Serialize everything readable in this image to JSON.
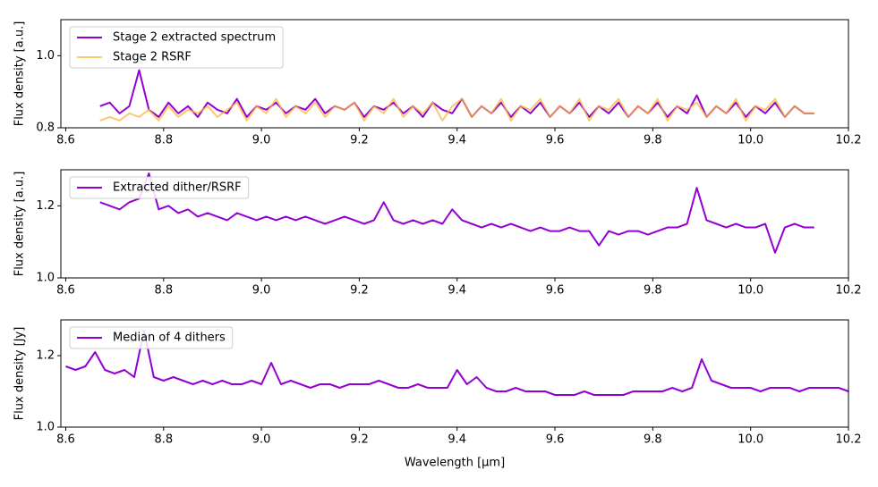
{
  "chart_data": [
    {
      "type": "line",
      "ylabel": "Flux density [a.u.]",
      "xlim": [
        8.59,
        10.2
      ],
      "ylim": [
        0.8,
        1.1
      ],
      "xticks": [
        8.6,
        8.8,
        {
          "value": 9,
          "label": "9.0"
        },
        9.2,
        9.4,
        9.6,
        9.8,
        {
          "value": 10,
          "label": "10.0"
        },
        10.2
      ],
      "yticks": [
        0.8,
        {
          "value": 1,
          "label": "1.0"
        }
      ],
      "legend": "upper left",
      "x": [
        8.67,
        8.69,
        8.71,
        8.73,
        8.75,
        8.77,
        8.79,
        8.81,
        8.83,
        8.85,
        8.87,
        8.89,
        8.91,
        8.93,
        8.95,
        8.97,
        8.99,
        9.01,
        9.03,
        9.05,
        9.07,
        9.09,
        9.11,
        9.13,
        9.15,
        9.17,
        9.19,
        9.21,
        9.23,
        9.25,
        9.27,
        9.29,
        9.31,
        9.33,
        9.35,
        9.37,
        9.39,
        9.41,
        9.43,
        9.45,
        9.47,
        9.49,
        9.51,
        9.53,
        9.55,
        9.57,
        9.59,
        9.61,
        9.63,
        9.65,
        9.67,
        9.69,
        9.71,
        9.73,
        9.75,
        9.77,
        9.79,
        9.81,
        9.83,
        9.85,
        9.87,
        9.89,
        9.91,
        9.93,
        9.95,
        9.97,
        9.99,
        10.01,
        10.03,
        10.05,
        10.07,
        10.09,
        10.11,
        10.13
      ],
      "series": [
        {
          "name": "Stage 2 extracted spectrum",
          "color": "#9400d3",
          "values": [
            0.86,
            0.87,
            0.84,
            0.86,
            0.96,
            0.85,
            0.83,
            0.87,
            0.84,
            0.86,
            0.83,
            0.87,
            0.85,
            0.84,
            0.88,
            0.83,
            0.86,
            0.85,
            0.87,
            0.84,
            0.86,
            0.85,
            0.88,
            0.84,
            0.86,
            0.85,
            0.87,
            0.83,
            0.86,
            0.85,
            0.87,
            0.84,
            0.86,
            0.83,
            0.87,
            0.85,
            0.84,
            0.88,
            0.83,
            0.86,
            0.84,
            0.87,
            0.83,
            0.86,
            0.84,
            0.87,
            0.83,
            0.86,
            0.84,
            0.87,
            0.83,
            0.86,
            0.84,
            0.87,
            0.83,
            0.86,
            0.84,
            0.87,
            0.83,
            0.86,
            0.84,
            0.89,
            0.83,
            0.86,
            0.84,
            0.87,
            0.83,
            0.86,
            0.84,
            0.87,
            0.83,
            0.86,
            0.84,
            0.84
          ]
        },
        {
          "name": "Stage 2 RSRF",
          "color": "#f9b73a",
          "values": [
            0.82,
            0.83,
            0.82,
            0.84,
            0.83,
            0.85,
            0.82,
            0.86,
            0.83,
            0.85,
            0.84,
            0.86,
            0.83,
            0.85,
            0.87,
            0.82,
            0.86,
            0.84,
            0.88,
            0.83,
            0.86,
            0.84,
            0.87,
            0.83,
            0.86,
            0.85,
            0.87,
            0.82,
            0.86,
            0.84,
            0.88,
            0.83,
            0.86,
            0.84,
            0.87,
            0.82,
            0.86,
            0.88,
            0.83,
            0.86,
            0.84,
            0.88,
            0.82,
            0.86,
            0.85,
            0.88,
            0.83,
            0.86,
            0.84,
            0.88,
            0.82,
            0.86,
            0.85,
            0.88,
            0.83,
            0.86,
            0.84,
            0.88,
            0.82,
            0.86,
            0.85,
            0.87,
            0.83,
            0.86,
            0.84,
            0.88,
            0.82,
            0.86,
            0.85,
            0.88,
            0.83,
            0.86,
            0.84,
            0.84
          ]
        }
      ]
    },
    {
      "type": "line",
      "ylabel": "Flux density [a.u.]",
      "xlim": [
        8.59,
        10.2
      ],
      "ylim": [
        1.0,
        1.3
      ],
      "xticks": [
        8.6,
        8.8,
        {
          "value": 9,
          "label": "9.0"
        },
        9.2,
        9.4,
        9.6,
        9.8,
        {
          "value": 10,
          "label": "10.0"
        },
        10.2
      ],
      "yticks": [
        {
          "value": 1,
          "label": "1.0"
        },
        1.2
      ],
      "legend": "upper left",
      "x": [
        8.67,
        8.69,
        8.71,
        8.73,
        8.75,
        8.77,
        8.79,
        8.81,
        8.83,
        8.85,
        8.87,
        8.89,
        8.91,
        8.93,
        8.95,
        8.97,
        8.99,
        9.01,
        9.03,
        9.05,
        9.07,
        9.09,
        9.11,
        9.13,
        9.15,
        9.17,
        9.19,
        9.21,
        9.23,
        9.25,
        9.27,
        9.29,
        9.31,
        9.33,
        9.35,
        9.37,
        9.39,
        9.41,
        9.43,
        9.45,
        9.47,
        9.49,
        9.51,
        9.53,
        9.55,
        9.57,
        9.59,
        9.61,
        9.63,
        9.65,
        9.67,
        9.69,
        9.71,
        9.73,
        9.75,
        9.77,
        9.79,
        9.81,
        9.83,
        9.85,
        9.87,
        9.89,
        9.91,
        9.93,
        9.95,
        9.97,
        9.99,
        10.01,
        10.03,
        10.05,
        10.07,
        10.09,
        10.11,
        10.13
      ],
      "series": [
        {
          "name": "Extracted dither/RSRF",
          "color": "#9400d3",
          "values": [
            1.21,
            1.2,
            1.19,
            1.21,
            1.22,
            1.29,
            1.19,
            1.2,
            1.18,
            1.19,
            1.17,
            1.18,
            1.17,
            1.16,
            1.18,
            1.17,
            1.16,
            1.17,
            1.16,
            1.17,
            1.16,
            1.17,
            1.16,
            1.15,
            1.16,
            1.17,
            1.16,
            1.15,
            1.16,
            1.21,
            1.16,
            1.15,
            1.16,
            1.15,
            1.16,
            1.15,
            1.19,
            1.16,
            1.15,
            1.14,
            1.15,
            1.14,
            1.15,
            1.14,
            1.13,
            1.14,
            1.13,
            1.13,
            1.14,
            1.13,
            1.13,
            1.09,
            1.13,
            1.12,
            1.13,
            1.13,
            1.12,
            1.13,
            1.14,
            1.14,
            1.15,
            1.25,
            1.16,
            1.15,
            1.14,
            1.15,
            1.14,
            1.14,
            1.15,
            1.07,
            1.14,
            1.15,
            1.14,
            1.14
          ]
        }
      ]
    },
    {
      "type": "line",
      "ylabel": "Flux density [Jy]",
      "xlabel": "Wavelength [μm]",
      "xlim": [
        8.59,
        10.2
      ],
      "ylim": [
        1.0,
        1.3
      ],
      "xticks": [
        8.6,
        8.8,
        {
          "value": 9,
          "label": "9.0"
        },
        9.2,
        9.4,
        9.6,
        9.8,
        {
          "value": 10,
          "label": "10.0"
        },
        10.2
      ],
      "yticks": [
        {
          "value": 1,
          "label": "1.0"
        },
        1.2
      ],
      "legend": "upper left",
      "x": [
        8.6,
        8.62,
        8.64,
        8.66,
        8.68,
        8.7,
        8.72,
        8.74,
        8.76,
        8.78,
        8.8,
        8.82,
        8.84,
        8.86,
        8.88,
        8.9,
        8.92,
        8.94,
        8.96,
        8.98,
        9.0,
        9.02,
        9.04,
        9.06,
        9.08,
        9.1,
        9.12,
        9.14,
        9.16,
        9.18,
        9.2,
        9.22,
        9.24,
        9.26,
        9.28,
        9.3,
        9.32,
        9.34,
        9.36,
        9.38,
        9.4,
        9.42,
        9.44,
        9.46,
        9.48,
        9.5,
        9.52,
        9.54,
        9.56,
        9.58,
        9.6,
        9.62,
        9.64,
        9.66,
        9.68,
        9.7,
        9.72,
        9.74,
        9.76,
        9.78,
        9.8,
        9.82,
        9.84,
        9.86,
        9.88,
        9.9,
        9.92,
        9.94,
        9.96,
        9.98,
        10.0,
        10.02,
        10.04,
        10.06,
        10.08,
        10.1,
        10.12,
        10.14,
        10.16,
        10.18,
        10.2
      ],
      "series": [
        {
          "name": "Median of 4 dithers",
          "color": "#9400d3",
          "values": [
            1.17,
            1.16,
            1.17,
            1.21,
            1.16,
            1.15,
            1.16,
            1.14,
            1.27,
            1.14,
            1.13,
            1.14,
            1.13,
            1.12,
            1.13,
            1.12,
            1.13,
            1.12,
            1.12,
            1.13,
            1.12,
            1.18,
            1.12,
            1.13,
            1.12,
            1.11,
            1.12,
            1.12,
            1.11,
            1.12,
            1.12,
            1.12,
            1.13,
            1.12,
            1.11,
            1.11,
            1.12,
            1.11,
            1.11,
            1.11,
            1.16,
            1.12,
            1.14,
            1.11,
            1.1,
            1.1,
            1.11,
            1.1,
            1.1,
            1.1,
            1.09,
            1.09,
            1.09,
            1.1,
            1.09,
            1.09,
            1.09,
            1.09,
            1.1,
            1.1,
            1.1,
            1.1,
            1.11,
            1.1,
            1.11,
            1.19,
            1.13,
            1.12,
            1.11,
            1.11,
            1.11,
            1.1,
            1.11,
            1.11,
            1.11,
            1.1,
            1.11,
            1.11,
            1.11,
            1.11,
            1.1
          ]
        }
      ]
    }
  ]
}
